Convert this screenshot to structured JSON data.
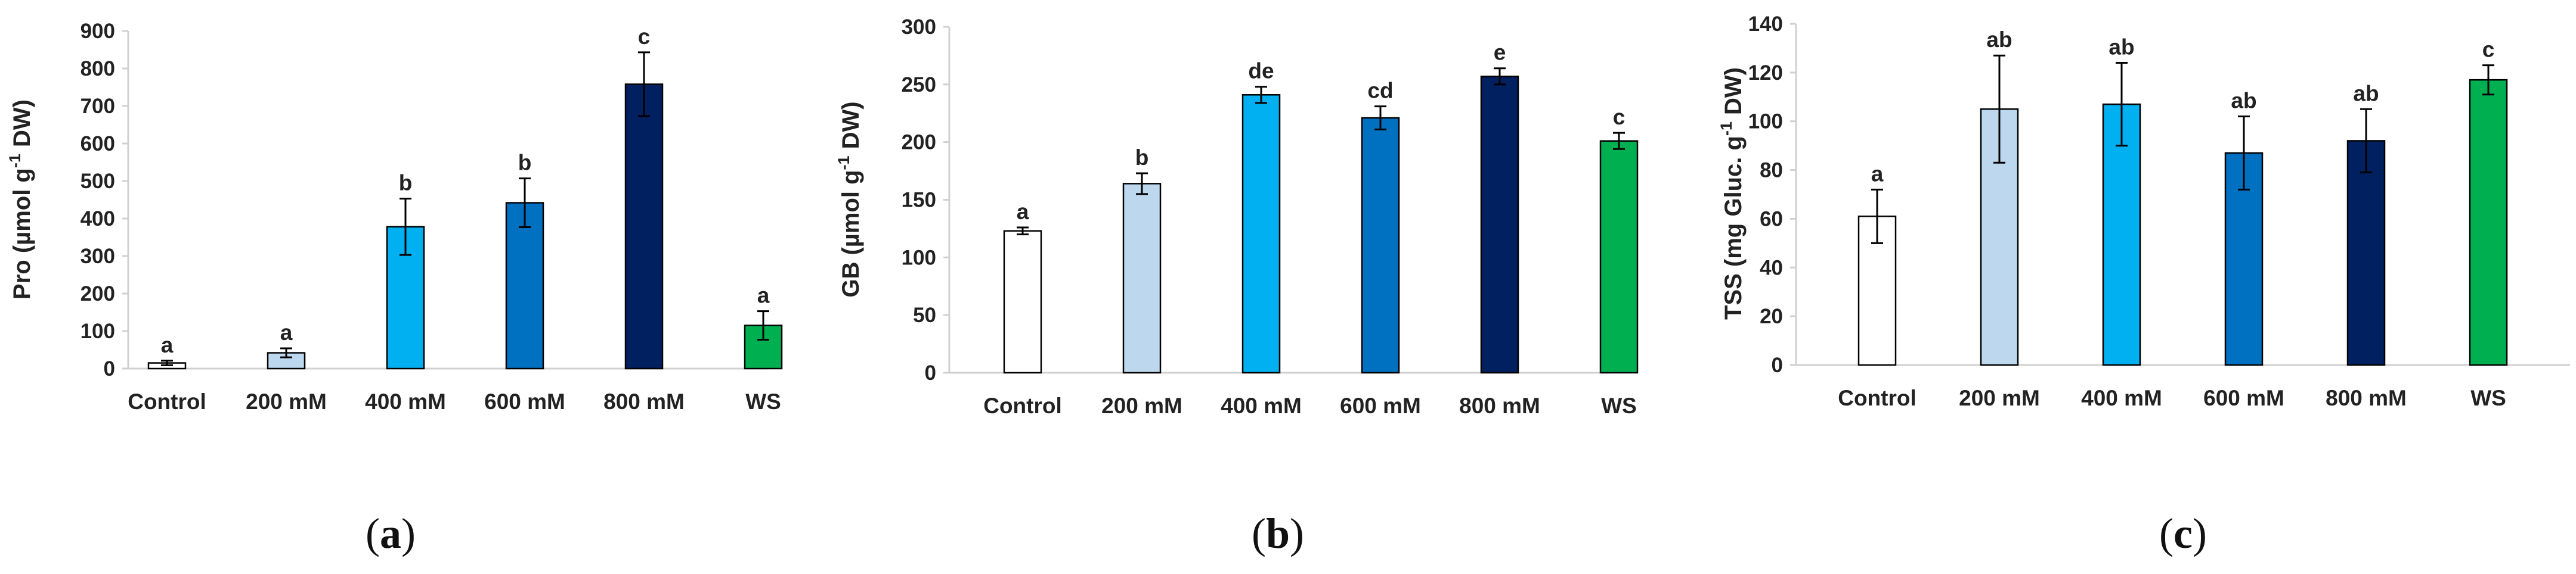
{
  "figure": {
    "bar_colors": {
      "Control": "#ffffff",
      "200 mM": "#bdd7ee",
      "400 mM": "#00b0f0",
      "600 mM": "#0070c0",
      "800 mM": "#002060",
      "WS": "#00b050"
    }
  },
  "chart_data": [
    {
      "type": "bar",
      "panel": "a",
      "ylabel_pre": "Pro (µmol g",
      "ylabel_sup": "-1",
      "ylabel_post": " DW)",
      "categories": [
        "Control",
        "200 mM",
        "400 mM",
        "600 mM",
        "800 mM",
        "WS"
      ],
      "values": [
        15,
        42,
        378,
        442,
        758,
        115
      ],
      "errors": [
        6,
        12,
        75,
        65,
        85,
        38
      ],
      "letters": [
        "a",
        "a",
        "b",
        "b",
        "c",
        "a"
      ],
      "ylim": [
        0,
        900
      ],
      "yticks": [
        0,
        100,
        200,
        300,
        400,
        500,
        600,
        700,
        800,
        900
      ]
    },
    {
      "type": "bar",
      "panel": "b",
      "ylabel_pre": "GB (µmol g",
      "ylabel_sup": "-1",
      "ylabel_post": " DW)",
      "categories": [
        "Control",
        "200 mM",
        "400 mM",
        "600 mM",
        "800 mM",
        "WS"
      ],
      "values": [
        123,
        164,
        241,
        221,
        257,
        201
      ],
      "errors": [
        3,
        9,
        7,
        10,
        7,
        7
      ],
      "letters": [
        "a",
        "b",
        "de",
        "cd",
        "e",
        "c"
      ],
      "ylim": [
        0,
        300
      ],
      "yticks": [
        0,
        50,
        100,
        150,
        200,
        250,
        300
      ]
    },
    {
      "type": "bar",
      "panel": "c",
      "ylabel_pre": "TSS (mg Gluc. g",
      "ylabel_sup": "-1",
      "ylabel_post": " DW)",
      "categories": [
        "Control",
        "200 mM",
        "400 mM",
        "600 mM",
        "800 mM",
        "WS"
      ],
      "values": [
        61,
        105,
        107,
        87,
        92,
        117
      ],
      "errors": [
        11,
        22,
        17,
        15,
        13,
        6
      ],
      "letters": [
        "a",
        "ab",
        "ab",
        "ab",
        "ab",
        "c"
      ],
      "ylim": [
        0,
        140
      ],
      "yticks": [
        0,
        20,
        40,
        60,
        80,
        100,
        120,
        140
      ]
    }
  ]
}
